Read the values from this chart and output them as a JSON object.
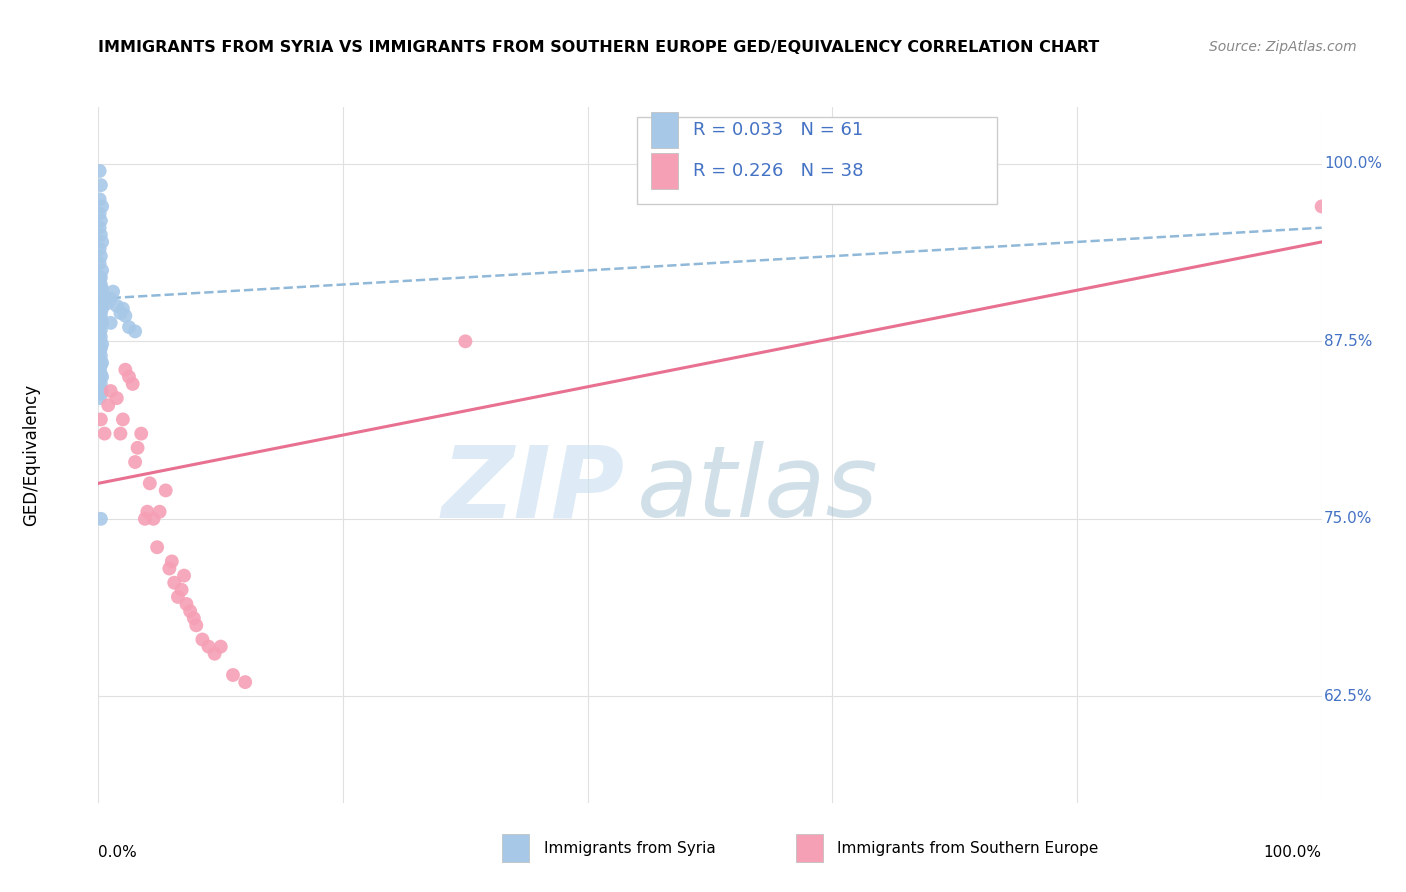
{
  "title": "IMMIGRANTS FROM SYRIA VS IMMIGRANTS FROM SOUTHERN EUROPE GED/EQUIVALENCY CORRELATION CHART",
  "source": "Source: ZipAtlas.com",
  "ylabel": "GED/Equivalency",
  "color_syria": "#a8c8e8",
  "color_s_europe": "#f5a0b5",
  "color_syria_line": "#90b8d8",
  "color_s_europe_line": "#e87090",
  "color_text_blue": "#4472c4",
  "color_grid": "#e0e0e0",
  "ytick_values": [
    0.625,
    0.75,
    0.875,
    1.0
  ],
  "ytick_labels": [
    "62.5%",
    "75.0%",
    "87.5%",
    "100.0%"
  ],
  "xlim": [
    0.0,
    1.0
  ],
  "ylim": [
    0.55,
    1.04
  ],
  "syria_x": [
    0.001,
    0.002,
    0.001,
    0.003,
    0.001,
    0.002,
    0.001,
    0.002,
    0.003,
    0.001,
    0.002,
    0.001,
    0.003,
    0.001,
    0.002,
    0.001,
    0.002,
    0.003,
    0.001,
    0.002,
    0.001,
    0.002,
    0.001,
    0.003,
    0.002,
    0.001,
    0.002,
    0.001,
    0.003,
    0.001,
    0.002,
    0.001,
    0.002,
    0.001,
    0.003,
    0.002,
    0.001,
    0.012,
    0.01,
    0.008,
    0.015,
    0.02,
    0.018,
    0.022,
    0.01,
    0.025,
    0.03,
    0.002,
    0.001,
    0.003,
    0.002,
    0.001,
    0.002,
    0.003,
    0.001,
    0.002,
    0.001,
    0.003,
    0.002,
    0.001,
    0.002
  ],
  "syria_y": [
    0.995,
    0.985,
    0.975,
    0.97,
    0.965,
    0.96,
    0.955,
    0.95,
    0.945,
    0.94,
    0.935,
    0.93,
    0.925,
    0.92,
    0.92,
    0.918,
    0.915,
    0.912,
    0.91,
    0.908,
    0.905,
    0.903,
    0.9,
    0.898,
    0.895,
    0.893,
    0.892,
    0.89,
    0.888,
    0.885,
    0.883,
    0.88,
    0.878,
    0.875,
    0.873,
    0.87,
    0.868,
    0.91,
    0.905,
    0.902,
    0.9,
    0.898,
    0.895,
    0.893,
    0.888,
    0.885,
    0.882,
    0.865,
    0.862,
    0.86,
    0.858,
    0.855,
    0.852,
    0.85,
    0.848,
    0.845,
    0.842,
    0.84,
    0.838,
    0.835,
    0.75
  ],
  "seurope_x": [
    0.002,
    0.005,
    0.008,
    0.01,
    0.015,
    0.018,
    0.02,
    0.022,
    0.025,
    0.028,
    0.03,
    0.032,
    0.035,
    0.038,
    0.04,
    0.042,
    0.045,
    0.048,
    0.05,
    0.055,
    0.058,
    0.06,
    0.062,
    0.065,
    0.068,
    0.07,
    0.072,
    0.075,
    0.078,
    0.08,
    0.085,
    0.09,
    0.095,
    0.1,
    0.11,
    0.12,
    0.3,
    1.0
  ],
  "seurope_y": [
    0.82,
    0.81,
    0.83,
    0.84,
    0.835,
    0.81,
    0.82,
    0.855,
    0.85,
    0.845,
    0.79,
    0.8,
    0.81,
    0.75,
    0.755,
    0.775,
    0.75,
    0.73,
    0.755,
    0.77,
    0.715,
    0.72,
    0.705,
    0.695,
    0.7,
    0.71,
    0.69,
    0.685,
    0.68,
    0.675,
    0.665,
    0.66,
    0.655,
    0.66,
    0.64,
    0.635,
    0.875,
    0.97
  ],
  "syria_trend_x": [
    0.0,
    1.0
  ],
  "syria_trend_y": [
    0.905,
    0.955
  ],
  "seurope_trend_x": [
    0.0,
    1.0
  ],
  "seurope_trend_y": [
    0.775,
    0.945
  ],
  "watermark_zip": "ZIP",
  "watermark_atlas": "atlas",
  "legend_entries": [
    {
      "label": "R = 0.033   N = 61",
      "color": "#a8c8e8"
    },
    {
      "label": "R = 0.226   N = 38",
      "color": "#f5a0b5"
    }
  ],
  "bottom_legend": [
    {
      "label": "Immigrants from Syria",
      "color": "#a8c8e8"
    },
    {
      "label": "Immigrants from Southern Europe",
      "color": "#f5a0b5"
    }
  ],
  "xtick_positions": [
    0.0,
    0.2,
    0.4,
    0.6,
    0.8,
    1.0
  ]
}
